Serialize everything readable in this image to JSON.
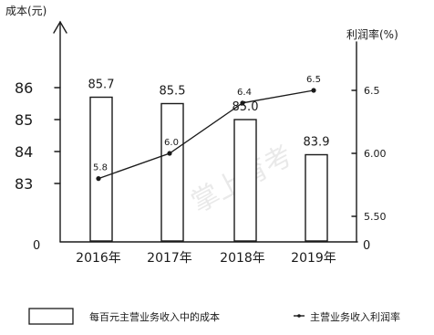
{
  "chart_data": {
    "type": "bar+line",
    "categories": [
      "2016年",
      "2017年",
      "2018年",
      "2019年"
    ],
    "left_axis": {
      "label": "成本(元)",
      "ticks": [
        86,
        85,
        84,
        83
      ],
      "zero_label": "0"
    },
    "right_axis": {
      "label": "利润率(%)",
      "ticks": [
        "6.5",
        "6.00",
        "5.50"
      ],
      "zero_label": "0"
    },
    "series": [
      {
        "name": "每百元主营业务收入中的成本",
        "type": "bar",
        "axis": "left",
        "values": [
          85.7,
          85.5,
          85.0,
          83.9
        ],
        "labels": [
          "85.7",
          "85.5",
          "85.0",
          "83.9"
        ]
      },
      {
        "name": "主营业务收入利润率",
        "type": "line",
        "axis": "right",
        "values": [
          5.8,
          6.0,
          6.4,
          6.5
        ],
        "labels": [
          "5.8",
          "6.0",
          "6.4",
          "6.5"
        ]
      }
    ],
    "watermark": "掌上育考"
  }
}
